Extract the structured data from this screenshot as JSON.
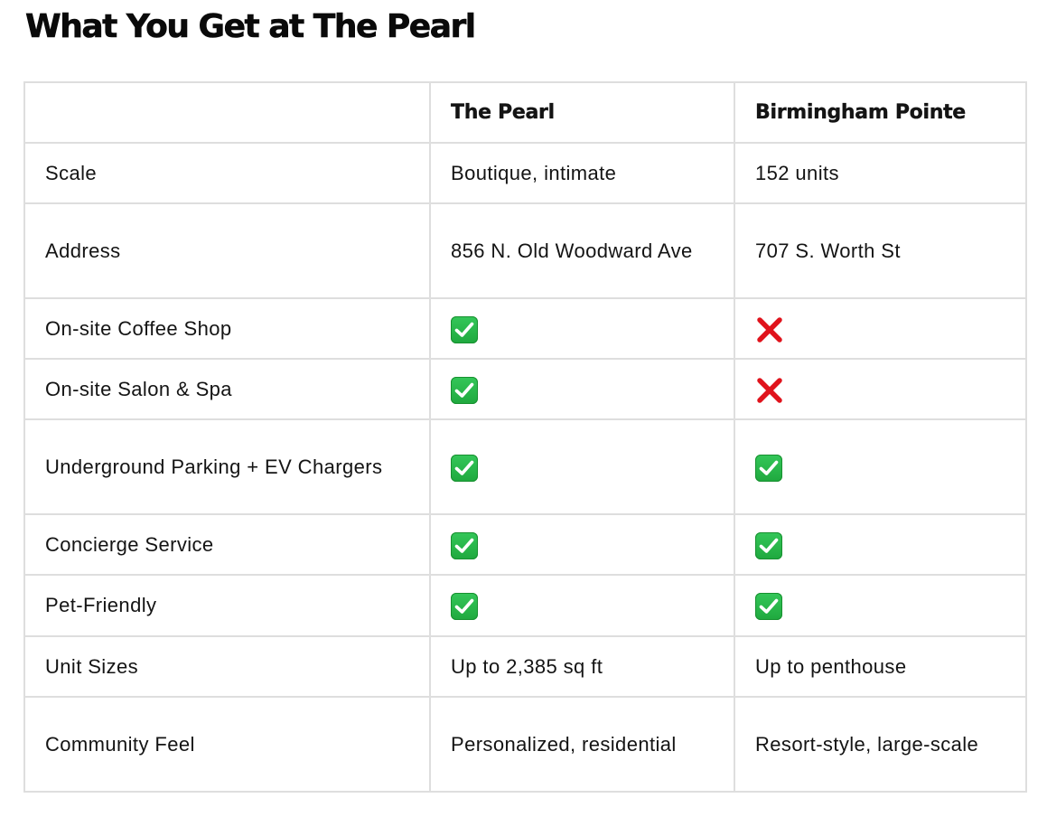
{
  "title": "What You Get at The Pearl",
  "table": {
    "columns": [
      "",
      "The Pearl",
      "Birmingham Pointe"
    ],
    "rows": [
      {
        "label": "Scale",
        "pearl": {
          "type": "text",
          "text": "Boutique, intimate"
        },
        "pointe": {
          "type": "text",
          "text": "152 units"
        }
      },
      {
        "label": "Address",
        "pearl": {
          "type": "text",
          "text": "856 N. Old Woodward Ave"
        },
        "pointe": {
          "type": "text",
          "text": "707 S. Worth St"
        }
      },
      {
        "label": "On-site Coffee Shop",
        "pearl": {
          "type": "icon",
          "icon": "check-mark-icon"
        },
        "pointe": {
          "type": "icon",
          "icon": "cross-mark-icon"
        }
      },
      {
        "label": "On-site Salon & Spa",
        "pearl": {
          "type": "icon",
          "icon": "check-mark-icon"
        },
        "pointe": {
          "type": "icon",
          "icon": "cross-mark-icon"
        }
      },
      {
        "label": "Underground Parking + EV Chargers",
        "pearl": {
          "type": "icon",
          "icon": "check-mark-icon"
        },
        "pointe": {
          "type": "icon",
          "icon": "check-mark-icon"
        }
      },
      {
        "label": "Concierge Service",
        "pearl": {
          "type": "icon",
          "icon": "check-mark-icon"
        },
        "pointe": {
          "type": "icon",
          "icon": "check-mark-icon"
        }
      },
      {
        "label": "Pet-Friendly",
        "pearl": {
          "type": "icon",
          "icon": "check-mark-icon"
        },
        "pointe": {
          "type": "icon",
          "icon": "check-mark-icon"
        }
      },
      {
        "label": "Unit Sizes",
        "pearl": {
          "type": "text",
          "text": "Up to 2,385 sq ft"
        },
        "pointe": {
          "type": "text",
          "text": "Up to penthouse"
        }
      },
      {
        "label": "Community Feel",
        "pearl": {
          "type": "text",
          "text": "Personalized, residential"
        },
        "pointe": {
          "type": "text",
          "text": "Resort-style, large-scale"
        }
      }
    ]
  },
  "colors": {
    "check_green": "#2bb84a",
    "cross_red": "#e0131c",
    "border": "#dedede"
  }
}
